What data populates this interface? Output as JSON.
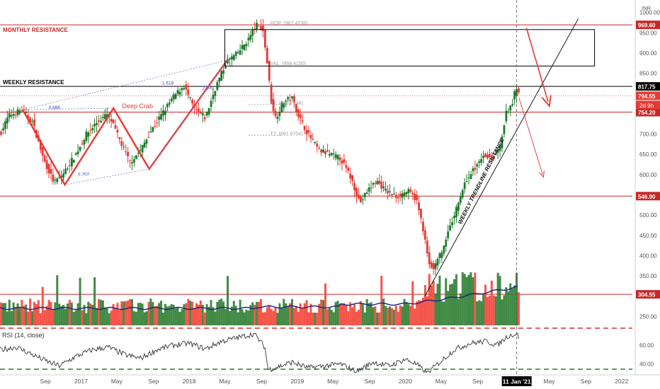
{
  "chart_data": {
    "type": "candlestick",
    "currency": "INR",
    "price_axis_ticks": [
      "1000.00",
      "950.00",
      "900.00",
      "850.00",
      "750.00",
      "700.00",
      "650.00",
      "600.00",
      "550.00",
      "500.00",
      "450.00",
      "400.00",
      "350.00",
      "250.00"
    ],
    "price_axis_tick_values": [
      1000,
      950,
      900,
      850,
      750,
      700,
      650,
      600,
      550,
      500,
      450,
      400,
      350,
      250
    ],
    "ylim": [
      228,
      1010
    ],
    "rsi_axis_ticks": [
      "60.00",
      "40.00"
    ],
    "rsi_axis_tick_values": [
      60,
      40
    ],
    "rsi_ylim": [
      30,
      78
    ],
    "x_ticks": [
      {
        "label": "Sep",
        "t": 2016.67
      },
      {
        "label": "2017",
        "t": 2017.0
      },
      {
        "label": "May",
        "t": 2017.33
      },
      {
        "label": "Sep",
        "t": 2017.67
      },
      {
        "label": "2018",
        "t": 2018.0
      },
      {
        "label": "May",
        "t": 2018.33
      },
      {
        "label": "Sep",
        "t": 2018.67
      },
      {
        "label": "2019",
        "t": 2019.0
      },
      {
        "label": "May",
        "t": 2019.33
      },
      {
        "label": "Sep",
        "t": 2019.67
      },
      {
        "label": "2020",
        "t": 2020.0
      },
      {
        "label": "May",
        "t": 2020.33
      },
      {
        "label": "Sep",
        "t": 2020.67
      },
      {
        "label": "May",
        "t": 2021.33
      },
      {
        "label": "Sep",
        "t": 2021.67
      },
      {
        "label": "2022",
        "t": 2022.0
      }
    ],
    "xlim": [
      2016.25,
      2022.1
    ],
    "cursor_date_label": "11 Jan '21",
    "cursor_t": 2021.03,
    "price_path": [
      [
        2016.25,
        700
      ],
      [
        2016.33,
        745
      ],
      [
        2016.45,
        760
      ],
      [
        2016.55,
        730
      ],
      [
        2016.65,
        640
      ],
      [
        2016.75,
        580
      ],
      [
        2016.83,
        600
      ],
      [
        2016.95,
        650
      ],
      [
        2017.05,
        700
      ],
      [
        2017.15,
        730
      ],
      [
        2017.25,
        750
      ],
      [
        2017.35,
        690
      ],
      [
        2017.45,
        630
      ],
      [
        2017.55,
        660
      ],
      [
        2017.65,
        710
      ],
      [
        2017.75,
        750
      ],
      [
        2017.85,
        790
      ],
      [
        2017.95,
        820
      ],
      [
        2018.05,
        760
      ],
      [
        2018.15,
        740
      ],
      [
        2018.25,
        820
      ],
      [
        2018.35,
        880
      ],
      [
        2018.45,
        900
      ],
      [
        2018.55,
        935
      ],
      [
        2018.62,
        970
      ],
      [
        2018.68,
        960
      ],
      [
        2018.72,
        880
      ],
      [
        2018.76,
        780
      ],
      [
        2018.8,
        740
      ],
      [
        2018.87,
        780
      ],
      [
        2018.95,
        790
      ],
      [
        2019.02,
        740
      ],
      [
        2019.1,
        700
      ],
      [
        2019.2,
        660
      ],
      [
        2019.3,
        650
      ],
      [
        2019.4,
        640
      ],
      [
        2019.5,
        590
      ],
      [
        2019.58,
        530
      ],
      [
        2019.65,
        560
      ],
      [
        2019.73,
        585
      ],
      [
        2019.82,
        560
      ],
      [
        2019.92,
        545
      ],
      [
        2020.02,
        560
      ],
      [
        2020.1,
        540
      ],
      [
        2020.17,
        460
      ],
      [
        2020.22,
        380
      ],
      [
        2020.27,
        370
      ],
      [
        2020.35,
        420
      ],
      [
        2020.45,
        500
      ],
      [
        2020.55,
        580
      ],
      [
        2020.65,
        620
      ],
      [
        2020.72,
        650
      ],
      [
        2020.8,
        640
      ],
      [
        2020.87,
        660
      ],
      [
        2020.93,
        750
      ],
      [
        2020.98,
        770
      ],
      [
        2021.02,
        810
      ],
      [
        2021.05,
        800
      ]
    ],
    "horizontal_levels": [
      {
        "price": 969.6,
        "label": "969.60",
        "color": "#c62828",
        "badge": true
      },
      {
        "price": 817.75,
        "label": "817.75",
        "color": "#000000",
        "badge": true
      },
      {
        "price": 794.55,
        "label": "794.55",
        "color": "#e53935",
        "badge": true,
        "dotted": true
      },
      {
        "price": 754.2,
        "label": "754.20",
        "color": "#c62828",
        "badge": true
      },
      {
        "price": 546.9,
        "label": "546.90",
        "color": "#c62828",
        "badge": true
      },
      {
        "price": 304.55,
        "label": "304.55",
        "color": "#c62828",
        "badge": true
      }
    ],
    "countdown_badge": "2d 9h",
    "resistance_labels": [
      {
        "text": "MONTHLY RESISTANCE",
        "color": "#c62828",
        "price": 969.6
      },
      {
        "text": "WEEKLY RESISTANCE",
        "color": "#000000",
        "price": 817.75
      }
    ],
    "trendline_label": "WEEKLY TRENDLINE RESISTANCE",
    "fib_annotations": [
      {
        "text": "1.618",
        "t": 2017.75,
        "price": 822
      },
      {
        "text": "2.000",
        "t": 2018.12,
        "price": 810
      },
      {
        "text": "0.886",
        "t": 2016.7,
        "price": 762
      },
      {
        "text": "Deep Crab",
        "t": 2017.38,
        "price": 764
      },
      {
        "text": "0.707",
        "t": 2016.97,
        "price": 597
      }
    ],
    "targets": [
      {
        "text": "HOP: (967.4236)",
        "price": 970
      },
      {
        "text": "VAL: (868.4150)",
        "price": 870
      },
      {
        "text": "T1: (766.7234)",
        "price": 773
      },
      {
        "text": "T2: (691.8704)",
        "price": 697
      }
    ],
    "rsi_label": "RSI (14, close)",
    "rsi_path": [
      [
        2016.25,
        55
      ],
      [
        2016.4,
        58
      ],
      [
        2016.55,
        50
      ],
      [
        2016.7,
        42
      ],
      [
        2016.8,
        38
      ],
      [
        2016.95,
        48
      ],
      [
        2017.1,
        55
      ],
      [
        2017.25,
        58
      ],
      [
        2017.4,
        50
      ],
      [
        2017.55,
        46
      ],
      [
        2017.7,
        55
      ],
      [
        2017.85,
        60
      ],
      [
        2018.0,
        62
      ],
      [
        2018.15,
        56
      ],
      [
        2018.3,
        64
      ],
      [
        2018.45,
        68
      ],
      [
        2018.6,
        72
      ],
      [
        2018.7,
        58
      ],
      [
        2018.73,
        34
      ],
      [
        2018.85,
        38
      ],
      [
        2018.95,
        42
      ],
      [
        2019.1,
        36
      ],
      [
        2019.25,
        38
      ],
      [
        2019.4,
        40
      ],
      [
        2019.55,
        32
      ],
      [
        2019.7,
        42
      ],
      [
        2019.85,
        38
      ],
      [
        2020.0,
        45
      ],
      [
        2020.1,
        40
      ],
      [
        2020.2,
        30
      ],
      [
        2020.3,
        40
      ],
      [
        2020.45,
        55
      ],
      [
        2020.6,
        62
      ],
      [
        2020.75,
        64
      ],
      [
        2020.85,
        60
      ],
      [
        2020.95,
        70
      ],
      [
        2021.03,
        72
      ],
      [
        2021.05,
        68
      ]
    ]
  }
}
